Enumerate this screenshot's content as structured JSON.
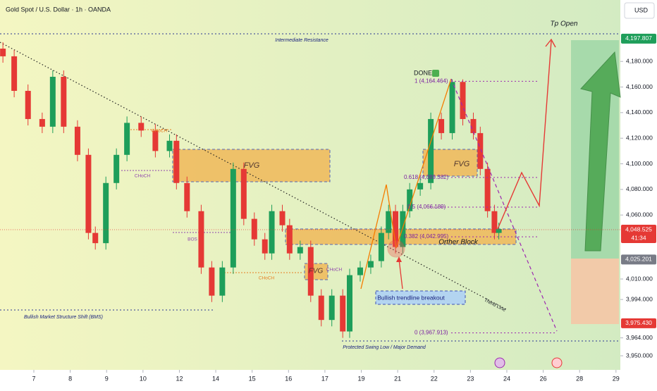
{
  "chart_data": {
    "type": "candlestick",
    "title": "Gold Spot / U.S. Dollar · 1h · OANDA",
    "currency": "USD",
    "up_color": "#1e9e5a",
    "down_color": "#e53935",
    "xlim": [
      -0.93,
      16.12
    ],
    "ylim": [
      3939,
      4228
    ],
    "xticks": [
      {
        "value": 0,
        "label": "7"
      },
      {
        "value": 1,
        "label": "8"
      },
      {
        "value": 2,
        "label": "9"
      },
      {
        "value": 3,
        "label": "10"
      },
      {
        "value": 4,
        "label": "12"
      },
      {
        "value": 5,
        "label": "14"
      },
      {
        "value": 6,
        "label": "15"
      },
      {
        "value": 7,
        "label": "16"
      },
      {
        "value": 8,
        "label": "17"
      },
      {
        "value": 9,
        "label": "19"
      },
      {
        "value": 10,
        "label": "21"
      },
      {
        "value": 11,
        "label": "22"
      },
      {
        "value": 12,
        "label": "23"
      },
      {
        "value": 13,
        "label": "24"
      },
      {
        "value": 14,
        "label": "26"
      },
      {
        "value": 15,
        "label": "28"
      },
      {
        "value": 16,
        "label": "29"
      }
    ],
    "yticks": [
      {
        "value": 3950,
        "label": "3,950.000"
      },
      {
        "value": 3964,
        "label": "3,964.000"
      },
      {
        "value": 3994,
        "label": "3,994.000"
      },
      {
        "value": 4010,
        "label": "4,010.000"
      },
      {
        "value": 4060,
        "label": "4,060.000"
      },
      {
        "value": 4080,
        "label": "4,080.000"
      },
      {
        "value": 4100,
        "label": "4,100.000"
      },
      {
        "value": 4120,
        "label": "4,120.000"
      },
      {
        "value": 4140,
        "label": "4,140.000"
      },
      {
        "value": 4160,
        "label": "4,160.000"
      },
      {
        "value": 4180,
        "label": "4,180.000"
      }
    ],
    "price_labels": [
      {
        "value": 4197.807,
        "label": "4,197.807",
        "color": "#1e9e5a"
      },
      {
        "value": 4048.525,
        "label": "4,048.525",
        "color": "#e53935"
      },
      {
        "value": 4025.201,
        "label": "4,025.201",
        "color": "#787b86"
      },
      {
        "value": 3975.43,
        "label": "3,975.430",
        "color": "#e53935"
      }
    ],
    "countdown": "41:34",
    "fib_levels": [
      {
        "value": 4164.464,
        "label": "1 (4,164.464)"
      },
      {
        "value": 4089.382,
        "label": "0.618 (4,089.382)"
      },
      {
        "value": 4066.189,
        "label": "0.5 (4,066.189)"
      },
      {
        "value": 4042.995,
        "label": "0.382 (4,042.995)"
      },
      {
        "value": 3967.913,
        "label": "0 (3,967.913)"
      }
    ],
    "annotations": [
      "Intermediate Resistance",
      "Tp Open",
      "DONE",
      "FVG",
      "FVG",
      "FVG",
      "CHoCH",
      "CHoCH",
      "CHoCH",
      "CHoCH",
      "BOS",
      "Orther Block",
      "Bullish trendline breakout",
      "Trend Line",
      "Bullish Market Structure Shift (BMS)",
      "Protected Swing Low / Major Demand"
    ],
    "x": [
      -0.85,
      -0.54,
      -0.16,
      0.23,
      0.52,
      0.82,
      1.2,
      1.5,
      1.69,
      1.98,
      2.27,
      2.56,
      2.95,
      3.34,
      3.73,
      3.92,
      4.21,
      4.6,
      4.89,
      5.18,
      5.48,
      5.77,
      6.06,
      6.35,
      6.54,
      6.83,
      7.03,
      7.32,
      7.61,
      7.9,
      8.19,
      8.49,
      8.68,
      8.97,
      9.26,
      9.55,
      9.75,
      9.94,
      10.14,
      10.33,
      10.62,
      10.91,
      11.2,
      11.5,
      11.79,
      12.08,
      12.27,
      12.47,
      12.66,
      12.78
    ],
    "open": [
      4190,
      4184,
      4157,
      4135,
      4129,
      4168,
      4129,
      4107,
      4046,
      4038,
      4085,
      4107,
      4132,
      4126,
      4110,
      4118,
      4085,
      4063,
      4019,
      3997,
      4019,
      4096,
      4057,
      4041,
      4030,
      4063,
      4052,
      4030,
      4035,
      3997,
      3978,
      3997,
      3969,
      4013,
      4019,
      4024,
      4046,
      4063,
      4035,
      4063,
      4080,
      4085,
      4135,
      4124,
      4164,
      4135,
      4124,
      4096,
      4063,
      4046
    ],
    "high": [
      4195,
      4189,
      4162,
      4140,
      4173,
      4173,
      4134,
      4112,
      4051,
      4090,
      4112,
      4137,
      4137,
      4131,
      4123,
      4123,
      4090,
      4068,
      4024,
      4024,
      4101,
      4101,
      4062,
      4046,
      4068,
      4068,
      4057,
      4040,
      4040,
      4002,
      4002,
      4002,
      4018,
      4024,
      4029,
      4051,
      4068,
      4068,
      4068,
      4085,
      4090,
      4140,
      4140,
      4166,
      4166,
      4140,
      4129,
      4101,
      4068,
      4054
    ],
    "low": [
      4179,
      4152,
      4130,
      4124,
      4124,
      4124,
      4102,
      4041,
      4033,
      4033,
      4080,
      4102,
      4121,
      4105,
      4105,
      4080,
      4058,
      4014,
      3992,
      3992,
      4014,
      4052,
      4036,
      4025,
      4025,
      4047,
      4025,
      4025,
      3992,
      3973,
      3973,
      3964,
      3964,
      4008,
      4014,
      4019,
      4041,
      4030,
      4030,
      4058,
      4075,
      4080,
      4119,
      4119,
      4130,
      4119,
      4091,
      4058,
      4041,
      4041
    ],
    "close": [
      4184,
      4157,
      4135,
      4129,
      4168,
      4129,
      4107,
      4046,
      4038,
      4085,
      4107,
      4132,
      4126,
      4110,
      4118,
      4085,
      4063,
      4019,
      3997,
      4019,
      4096,
      4057,
      4041,
      4030,
      4063,
      4052,
      4030,
      4035,
      3997,
      3978,
      3997,
      3969,
      4013,
      4019,
      4024,
      4046,
      4063,
      4035,
      4063,
      4080,
      4085,
      4135,
      4124,
      4164,
      4135,
      4124,
      4096,
      4063,
      4046,
      4049
    ]
  }
}
